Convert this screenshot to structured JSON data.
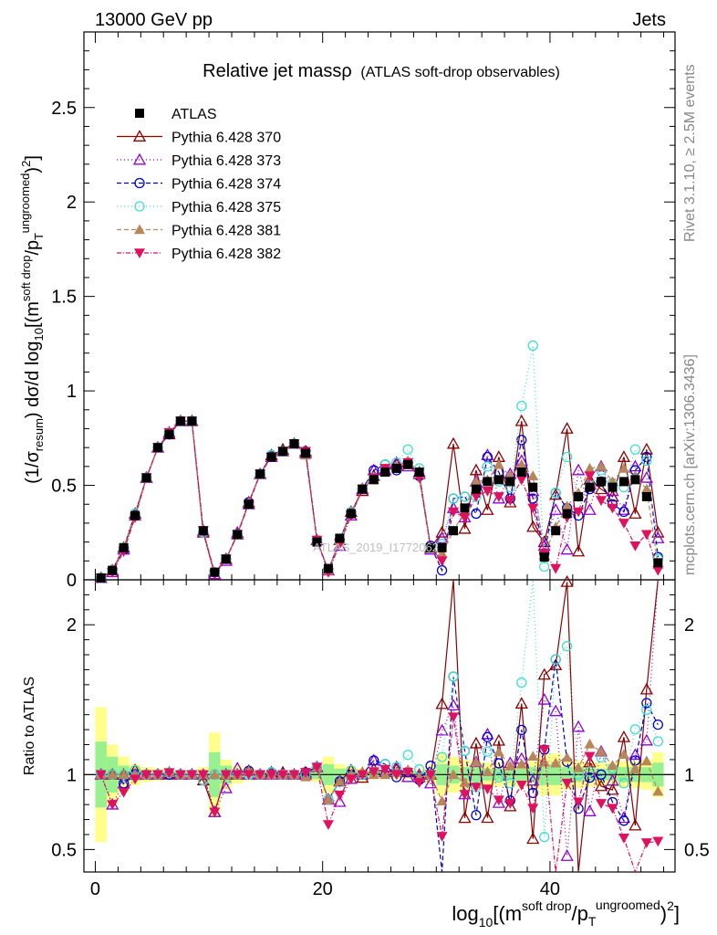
{
  "header": {
    "left": "13000 GeV pp",
    "right": "Jets",
    "side_top": "Rivet 3.1.10, ≥ 2.5M events",
    "side_bottom": "mcplots.cern.ch [arXiv:1306.3436]",
    "watermark": "ATLAS_2019_I1772062"
  },
  "chart_data": {
    "type": "scatter",
    "title": "Relative jet massρ",
    "subtitle": "(ATLAS soft-drop observables)",
    "ylabel": "(1/σ_resum) dσ/d log10[(m^soft drop/p_T^ungroomed)^2]",
    "ratio_ylabel": "Ratio to ATLAS",
    "xlabel": "log10[(m^soft drop/p_T^ungroomed)^2]",
    "xlim": [
      -1,
      51
    ],
    "ylim": [
      0,
      2.9
    ],
    "ratio_ylim": [
      0.35,
      2.3
    ],
    "x_ticks": [
      0,
      20,
      40
    ],
    "y_ticks": [
      0,
      0.5,
      1,
      1.5,
      2,
      2.5
    ],
    "ratio_y_ticks": [
      0.5,
      1,
      2
    ],
    "legend_position": "top-left",
    "x": [
      0.5,
      1.5,
      2.5,
      3.5,
      4.5,
      5.5,
      6.5,
      7.5,
      8.5,
      9.5,
      10.5,
      11.5,
      12.5,
      13.5,
      14.5,
      15.5,
      16.5,
      17.5,
      18.5,
      19.5,
      20.5,
      21.5,
      22.5,
      23.5,
      24.5,
      25.5,
      26.5,
      27.5,
      28.5,
      29.5,
      30.5,
      31.5,
      32.5,
      33.5,
      34.5,
      35.5,
      36.5,
      37.5,
      38.5,
      39.5,
      40.5,
      41.5,
      42.5,
      43.5,
      44.5,
      45.5,
      46.5,
      47.5,
      48.5,
      49.5
    ],
    "band_yellow_halfwidth": [
      0.45,
      0.2,
      0.12,
      0.07,
      0.05,
      0.04,
      0.03,
      0.03,
      0.03,
      0.05,
      0.28,
      0.1,
      0.06,
      0.04,
      0.03,
      0.02,
      0.02,
      0.02,
      0.03,
      0.05,
      0.12,
      0.07,
      0.05,
      0.04,
      0.03,
      0.03,
      0.03,
      0.03,
      0.04,
      0.06,
      0.14,
      0.12,
      0.1,
      0.09,
      0.08,
      0.08,
      0.08,
      0.08,
      0.09,
      0.14,
      0.14,
      0.1,
      0.09,
      0.08,
      0.08,
      0.08,
      0.09,
      0.09,
      0.1,
      0.15
    ],
    "band_green_halfwidth": [
      0.22,
      0.12,
      0.06,
      0.04,
      0.03,
      0.02,
      0.02,
      0.02,
      0.02,
      0.03,
      0.15,
      0.06,
      0.03,
      0.02,
      0.02,
      0.01,
      0.01,
      0.01,
      0.02,
      0.03,
      0.07,
      0.04,
      0.03,
      0.02,
      0.02,
      0.02,
      0.02,
      0.02,
      0.02,
      0.03,
      0.07,
      0.06,
      0.05,
      0.05,
      0.04,
      0.04,
      0.04,
      0.04,
      0.05,
      0.07,
      0.07,
      0.05,
      0.05,
      0.04,
      0.04,
      0.04,
      0.05,
      0.05,
      0.05,
      0.08
    ],
    "series": [
      {
        "name": "ATLAS",
        "color": "#000000",
        "marker": "square",
        "dash": "",
        "values": [
          0.01,
          0.05,
          0.17,
          0.34,
          0.54,
          0.7,
          0.77,
          0.84,
          0.84,
          0.26,
          0.04,
          0.11,
          0.24,
          0.4,
          0.56,
          0.65,
          0.68,
          0.72,
          0.67,
          0.2,
          0.06,
          0.22,
          0.35,
          0.48,
          0.53,
          0.57,
          0.59,
          0.61,
          0.57,
          0.17,
          0.17,
          0.26,
          0.38,
          0.48,
          0.52,
          0.53,
          0.52,
          0.57,
          0.49,
          0.12,
          0.26,
          0.35,
          0.44,
          0.49,
          0.52,
          0.49,
          0.52,
          0.53,
          0.44,
          0.09
        ]
      },
      {
        "name": "Pythia 6.428 370",
        "color": "#8b0000",
        "marker": "triangle-open",
        "dash": "",
        "values": [
          0.01,
          0.05,
          0.17,
          0.35,
          0.54,
          0.7,
          0.77,
          0.84,
          0.84,
          0.25,
          0.03,
          0.11,
          0.24,
          0.41,
          0.56,
          0.66,
          0.69,
          0.72,
          0.68,
          0.21,
          0.05,
          0.21,
          0.36,
          0.47,
          0.55,
          0.58,
          0.61,
          0.62,
          0.56,
          0.17,
          0.25,
          0.72,
          0.27,
          0.58,
          0.37,
          0.65,
          0.41,
          0.84,
          0.28,
          0.2,
          0.45,
          0.8,
          0.15,
          0.53,
          0.48,
          0.44,
          0.65,
          0.35,
          0.69,
          0.25
        ]
      },
      {
        "name": "Pythia 6.428 373",
        "color": "#9400d3",
        "marker": "triangle-open",
        "dash": "1,3",
        "values": [
          0.01,
          0.04,
          0.16,
          0.34,
          0.54,
          0.7,
          0.78,
          0.84,
          0.84,
          0.26,
          0.03,
          0.1,
          0.25,
          0.4,
          0.56,
          0.65,
          0.68,
          0.72,
          0.67,
          0.21,
          0.05,
          0.18,
          0.34,
          0.48,
          0.58,
          0.58,
          0.62,
          0.6,
          0.57,
          0.16,
          0.22,
          0.38,
          0.33,
          0.52,
          0.66,
          0.43,
          0.56,
          0.63,
          0.47,
          0.18,
          0.37,
          0.16,
          0.58,
          0.37,
          0.6,
          0.47,
          0.37,
          0.6,
          0.54,
          0.22
        ]
      },
      {
        "name": "Pythia 6.428 374",
        "color": "#0000cd",
        "marker": "circle-open",
        "dash": "5,3",
        "values": [
          0.01,
          0.05,
          0.16,
          0.34,
          0.54,
          0.7,
          0.77,
          0.84,
          0.84,
          0.25,
          0.04,
          0.11,
          0.24,
          0.41,
          0.56,
          0.66,
          0.68,
          0.72,
          0.68,
          0.21,
          0.05,
          0.21,
          0.35,
          0.48,
          0.58,
          0.61,
          0.58,
          0.62,
          0.55,
          0.18,
          0.05,
          0.43,
          0.44,
          0.35,
          0.65,
          0.57,
          0.43,
          0.74,
          0.43,
          0.14,
          0.46,
          0.38,
          0.34,
          0.48,
          0.52,
          0.4,
          0.36,
          0.58,
          0.65,
          0.12
        ]
      },
      {
        "name": "Pythia 6.428 375",
        "color": "#40e0d0",
        "marker": "circle-open",
        "dash": "1,3",
        "values": [
          0.01,
          0.05,
          0.17,
          0.35,
          0.54,
          0.7,
          0.78,
          0.84,
          0.84,
          0.25,
          0.04,
          0.11,
          0.24,
          0.4,
          0.56,
          0.66,
          0.68,
          0.72,
          0.67,
          0.21,
          0.05,
          0.2,
          0.36,
          0.48,
          0.54,
          0.61,
          0.62,
          0.69,
          0.59,
          0.17,
          0.19,
          0.43,
          0.44,
          0.44,
          0.6,
          0.52,
          0.49,
          0.92,
          1.24,
          0.07,
          0.46,
          0.65,
          0.44,
          0.5,
          0.58,
          0.51,
          0.49,
          0.69,
          0.63,
          0.11
        ]
      },
      {
        "name": "Pythia 6.428 381",
        "color": "#b8865b",
        "marker": "triangle-filled",
        "dash": "5,3",
        "values": [
          0.01,
          0.05,
          0.17,
          0.34,
          0.54,
          0.7,
          0.78,
          0.84,
          0.84,
          0.26,
          0.04,
          0.11,
          0.24,
          0.41,
          0.56,
          0.65,
          0.68,
          0.72,
          0.66,
          0.21,
          0.05,
          0.21,
          0.35,
          0.49,
          0.53,
          0.57,
          0.6,
          0.63,
          0.56,
          0.17,
          0.14,
          0.26,
          0.36,
          0.52,
          0.53,
          0.61,
          0.55,
          0.61,
          0.55,
          0.13,
          0.28,
          0.39,
          0.46,
          0.59,
          0.6,
          0.52,
          0.59,
          0.55,
          0.48,
          0.08
        ]
      },
      {
        "name": "Pythia 6.428 382",
        "color": "#e0115f",
        "marker": "triangle-down-filled",
        "dash": "5,2,1,2",
        "values": [
          0.01,
          0.04,
          0.15,
          0.33,
          0.54,
          0.7,
          0.78,
          0.84,
          0.84,
          0.26,
          0.03,
          0.11,
          0.24,
          0.4,
          0.56,
          0.65,
          0.68,
          0.72,
          0.68,
          0.21,
          0.04,
          0.19,
          0.34,
          0.48,
          0.54,
          0.59,
          0.59,
          0.62,
          0.54,
          0.17,
          0.1,
          0.36,
          0.33,
          0.44,
          0.47,
          0.44,
          0.42,
          0.53,
          0.38,
          0.14,
          0.06,
          0.33,
          0.36,
          0.55,
          0.42,
          0.38,
          0.3,
          0.18,
          0.24,
          0.05
        ]
      }
    ]
  }
}
